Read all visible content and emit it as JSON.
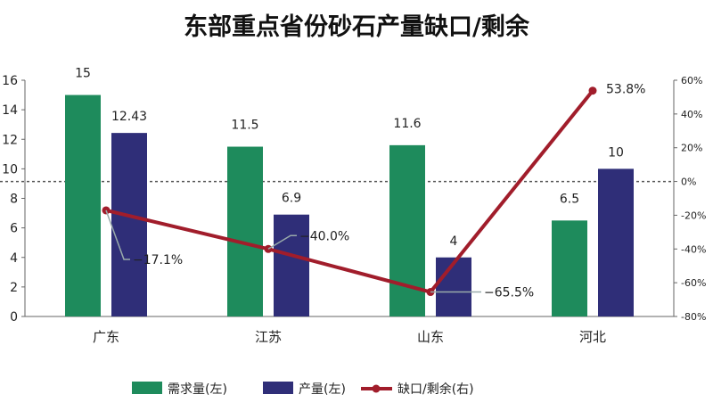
{
  "chart_data": {
    "type": "bar",
    "title": "东部重点省份砂石产量缺口/剩余",
    "categories": [
      "广东",
      "江苏",
      "山东",
      "河北"
    ],
    "series": [
      {
        "name": "需求量(左)",
        "type": "bar",
        "axis": "left",
        "color": "#1e8b5c",
        "values": [
          15,
          11.5,
          11.6,
          6.5
        ],
        "labels": [
          "15",
          "11.5",
          "11.6",
          "6.5"
        ]
      },
      {
        "name": "产量(左)",
        "type": "bar",
        "axis": "left",
        "color": "#2f2e78",
        "values": [
          12.43,
          6.9,
          4,
          10
        ],
        "labels": [
          "12.43",
          "6.9",
          "4",
          "10"
        ]
      },
      {
        "name": "缺口/剩余(右)",
        "type": "line",
        "axis": "right",
        "color": "#a11d2b",
        "values": [
          -17.1,
          -40.0,
          -65.5,
          53.8
        ],
        "labels": [
          "−17.1%",
          "−40.0%",
          "−65.5%",
          "53.8%"
        ]
      }
    ],
    "left_axis": {
      "ylim": [
        0,
        16
      ],
      "ticks": [
        "0",
        "2",
        "4",
        "6",
        "8",
        "10",
        "12",
        "14",
        "16"
      ]
    },
    "right_axis": {
      "ylim": [
        -80,
        60
      ],
      "ticks": [
        "-80%",
        "-60%",
        "-40%",
        "-20%",
        "0%",
        "20%",
        "40%",
        "60%"
      ]
    },
    "reference_line": {
      "axis": "right",
      "value": 0,
      "style": "dashed"
    },
    "legend": "bottom",
    "grid": false
  }
}
